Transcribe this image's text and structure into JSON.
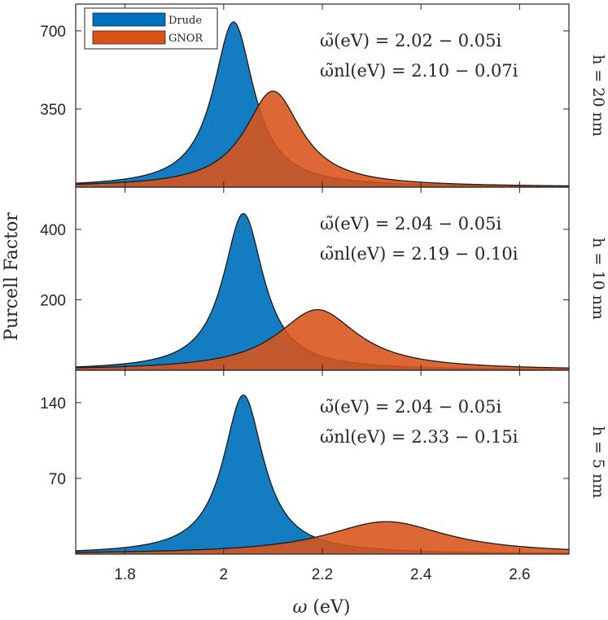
{
  "chart_data": {
    "type": "area",
    "xlabel": "ω (eV)",
    "ylabel": "Purcell Factor",
    "xlim": [
      1.7,
      2.7
    ],
    "xticks": [
      1.8,
      2.0,
      2.2,
      2.4,
      2.6
    ],
    "xtick_labels": [
      "1.8",
      "2",
      "2.2",
      "2.4",
      "2.6"
    ],
    "legend": {
      "placement": "top-left of top panel",
      "entries": [
        {
          "name": "Drude",
          "color": "#0072BD"
        },
        {
          "name": "GNOR",
          "color": "#D95319"
        }
      ]
    },
    "panels": [
      {
        "label": "h = 20 nm",
        "ylim": [
          0,
          820
        ],
        "yticks": [
          350,
          700
        ],
        "ann1": "ω̃(eV) = 2.02 − 0.05i",
        "ann2": "ω̃nl(eV) = 2.10 − 0.07i",
        "series": [
          {
            "name": "Drude",
            "center": 2.02,
            "gamma": 0.05,
            "peak": 740
          },
          {
            "name": "GNOR",
            "center": 2.1,
            "gamma": 0.07,
            "peak": 430
          }
        ]
      },
      {
        "label": "h = 10 nm",
        "ylim": [
          0,
          520
        ],
        "yticks": [
          200,
          400
        ],
        "ann1": "ω̃(eV) = 2.04 − 0.05i",
        "ann2": "ω̃nl(eV) = 2.19 − 0.10i",
        "series": [
          {
            "name": "Drude",
            "center": 2.04,
            "gamma": 0.05,
            "peak": 445
          },
          {
            "name": "GNOR",
            "center": 2.19,
            "gamma": 0.1,
            "peak": 172
          }
        ]
      },
      {
        "label": "h = 5 nm",
        "ylim": [
          0,
          170
        ],
        "yticks": [
          70,
          140
        ],
        "ann1": "ω̃(eV) = 2.04 − 0.05i",
        "ann2": "ω̃nl(eV) = 2.33 − 0.15i",
        "series": [
          {
            "name": "Drude",
            "center": 2.04,
            "gamma": 0.05,
            "peak": 147
          },
          {
            "name": "GNOR",
            "center": 2.33,
            "gamma": 0.15,
            "peak": 30
          }
        ]
      }
    ]
  }
}
